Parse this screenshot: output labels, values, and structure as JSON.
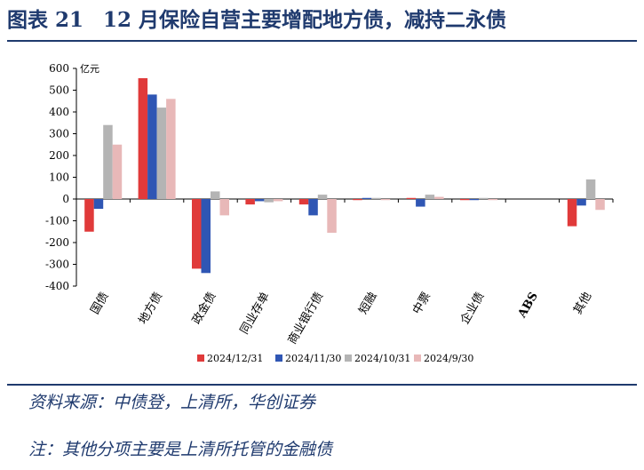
{
  "figure": {
    "label": "图表 21",
    "title": "12 月保险自营主要增配地方债，减持二永债"
  },
  "source": "资料来源：中债登，上清所，华创证券",
  "note": "注：其他分项主要是上清所托管的金融债",
  "chart_data": {
    "type": "bar",
    "unit_label": "亿元",
    "ylim": [
      -400,
      600
    ],
    "yticks": [
      -400,
      -300,
      -200,
      -100,
      0,
      100,
      200,
      300,
      400,
      500,
      600
    ],
    "categories": [
      "国债",
      "地方债",
      "政金债",
      "同业存单",
      "商业银行债",
      "短融",
      "中票",
      "企业债",
      "ABS",
      "其他"
    ],
    "series": [
      {
        "name": "2024/12/31",
        "color": "#e03a3a",
        "values": [
          -150,
          555,
          -320,
          -25,
          -25,
          -5,
          5,
          -5,
          0,
          -125
        ]
      },
      {
        "name": "2024/11/30",
        "color": "#2f56b4",
        "values": [
          -45,
          480,
          -340,
          -10,
          -75,
          5,
          -35,
          -5,
          0,
          -30
        ]
      },
      {
        "name": "2024/10/31",
        "color": "#b4b4b4",
        "values": [
          340,
          420,
          35,
          -15,
          20,
          5,
          20,
          5,
          0,
          90
        ]
      },
      {
        "name": "2024/9/30",
        "color": "#e8b8b8",
        "values": [
          250,
          460,
          -75,
          -10,
          -155,
          -5,
          10,
          -5,
          0,
          -50
        ]
      }
    ],
    "legend_position": "bottom",
    "grid": false
  }
}
